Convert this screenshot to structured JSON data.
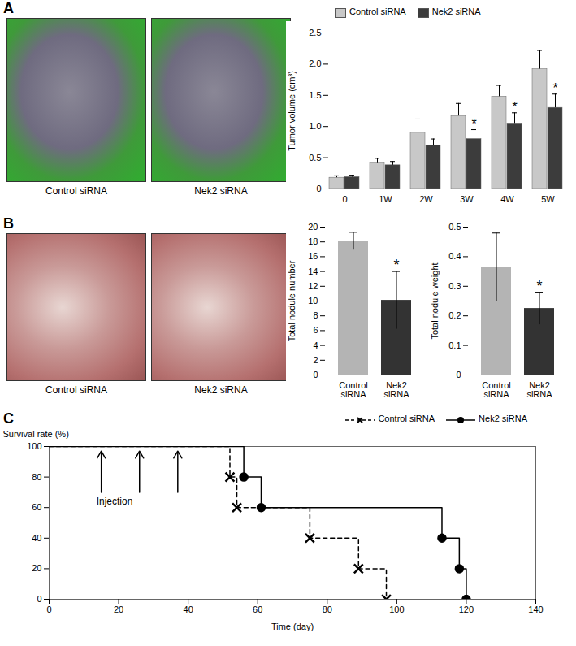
{
  "chart_data": [
    {
      "type": "bar",
      "title": "A",
      "image_captions": [
        "Control siRNA",
        "Nek2 siRNA"
      ],
      "categories": [
        "0",
        "1W",
        "2W",
        "3W",
        "4W",
        "5W"
      ],
      "series": [
        {
          "name": "Control siRNA",
          "color": "#c8c8c8",
          "values": [
            0.18,
            0.42,
            0.9,
            1.17,
            1.48,
            1.92
          ],
          "errors": [
            0.03,
            0.07,
            0.22,
            0.2,
            0.18,
            0.3
          ]
        },
        {
          "name": "Nek2 siRNA",
          "color": "#3c3c3c",
          "values": [
            0.19,
            0.38,
            0.7,
            0.8,
            1.05,
            1.3
          ],
          "errors": [
            0.03,
            0.06,
            0.1,
            0.15,
            0.17,
            0.22
          ]
        }
      ],
      "y_label": "Tumor volume (cm³)",
      "ylim": [
        0,
        2.5
      ],
      "yticks": [
        0,
        0.5,
        {
          "value": 1,
          "label": "1.0"
        },
        1.5,
        {
          "value": 2,
          "label": "2.0"
        },
        2.5
      ],
      "legend": "top-left",
      "annotations": [
        {
          "category": "3W",
          "series": "Nek2 siRNA",
          "text": "*"
        },
        {
          "category": "4W",
          "series": "Nek2 siRNA",
          "text": "*"
        },
        {
          "category": "5W",
          "series": "Nek2 siRNA",
          "text": "*"
        }
      ]
    },
    {
      "type": "bar",
      "title": "B",
      "image_captions": [
        "Control  siRNA",
        "Nek2 siRNA"
      ],
      "categories": [
        "Control siRNA",
        "Nek2 siRNA"
      ],
      "values": [
        18.1,
        10.1
      ],
      "errors": [
        1.2,
        3.9
      ],
      "colors": [
        "#b4b4b4",
        "#333333"
      ],
      "y_label": "Total nodule number",
      "ylim": [
        0,
        20
      ],
      "yticks": [
        0,
        2,
        4,
        6,
        8,
        10,
        12,
        14,
        16,
        18,
        20
      ],
      "annotations": [
        {
          "category": "Nek2 siRNA",
          "text": "*"
        }
      ]
    },
    {
      "type": "bar",
      "categories": [
        "Control siRNA",
        "Nek2 siRNA"
      ],
      "values": [
        0.365,
        0.225
      ],
      "errors": [
        0.115,
        0.055
      ],
      "colors": [
        "#b4b4b4",
        "#333333"
      ],
      "y_label": "Total nodule weight",
      "ylim": [
        0,
        0.5
      ],
      "yticks": [
        0,
        0.1,
        0.2,
        0.3,
        0.4,
        0.5
      ],
      "annotations": [
        {
          "category": "Nek2 siRNA",
          "text": "*"
        }
      ]
    },
    {
      "type": "line",
      "title": "C",
      "x_label": "Time (day)",
      "y_label": "Survival rate (%)",
      "xlim": [
        0,
        140
      ],
      "xticks": [
        0,
        20,
        40,
        60,
        80,
        100,
        120,
        140
      ],
      "ylim": [
        0,
        100
      ],
      "yticks": [
        0,
        20,
        40,
        60,
        80,
        100
      ],
      "legend": "top-right",
      "series": [
        {
          "name": "Control siRNA",
          "color": "#000000",
          "line_style": "dashed",
          "marker": "x",
          "x": [
            0,
            52,
            54,
            75,
            89,
            97
          ],
          "values": [
            100,
            80,
            60,
            40,
            20,
            0
          ]
        },
        {
          "name": "Nek2 siRNA",
          "color": "#000000",
          "line_style": "solid",
          "marker": "circle",
          "x": [
            0,
            56,
            61,
            113,
            118,
            120
          ],
          "values": [
            100,
            80,
            60,
            40,
            20,
            0
          ]
        }
      ],
      "annotations": [
        {
          "text": "Injection",
          "x": [
            15,
            26,
            37
          ]
        }
      ]
    }
  ]
}
